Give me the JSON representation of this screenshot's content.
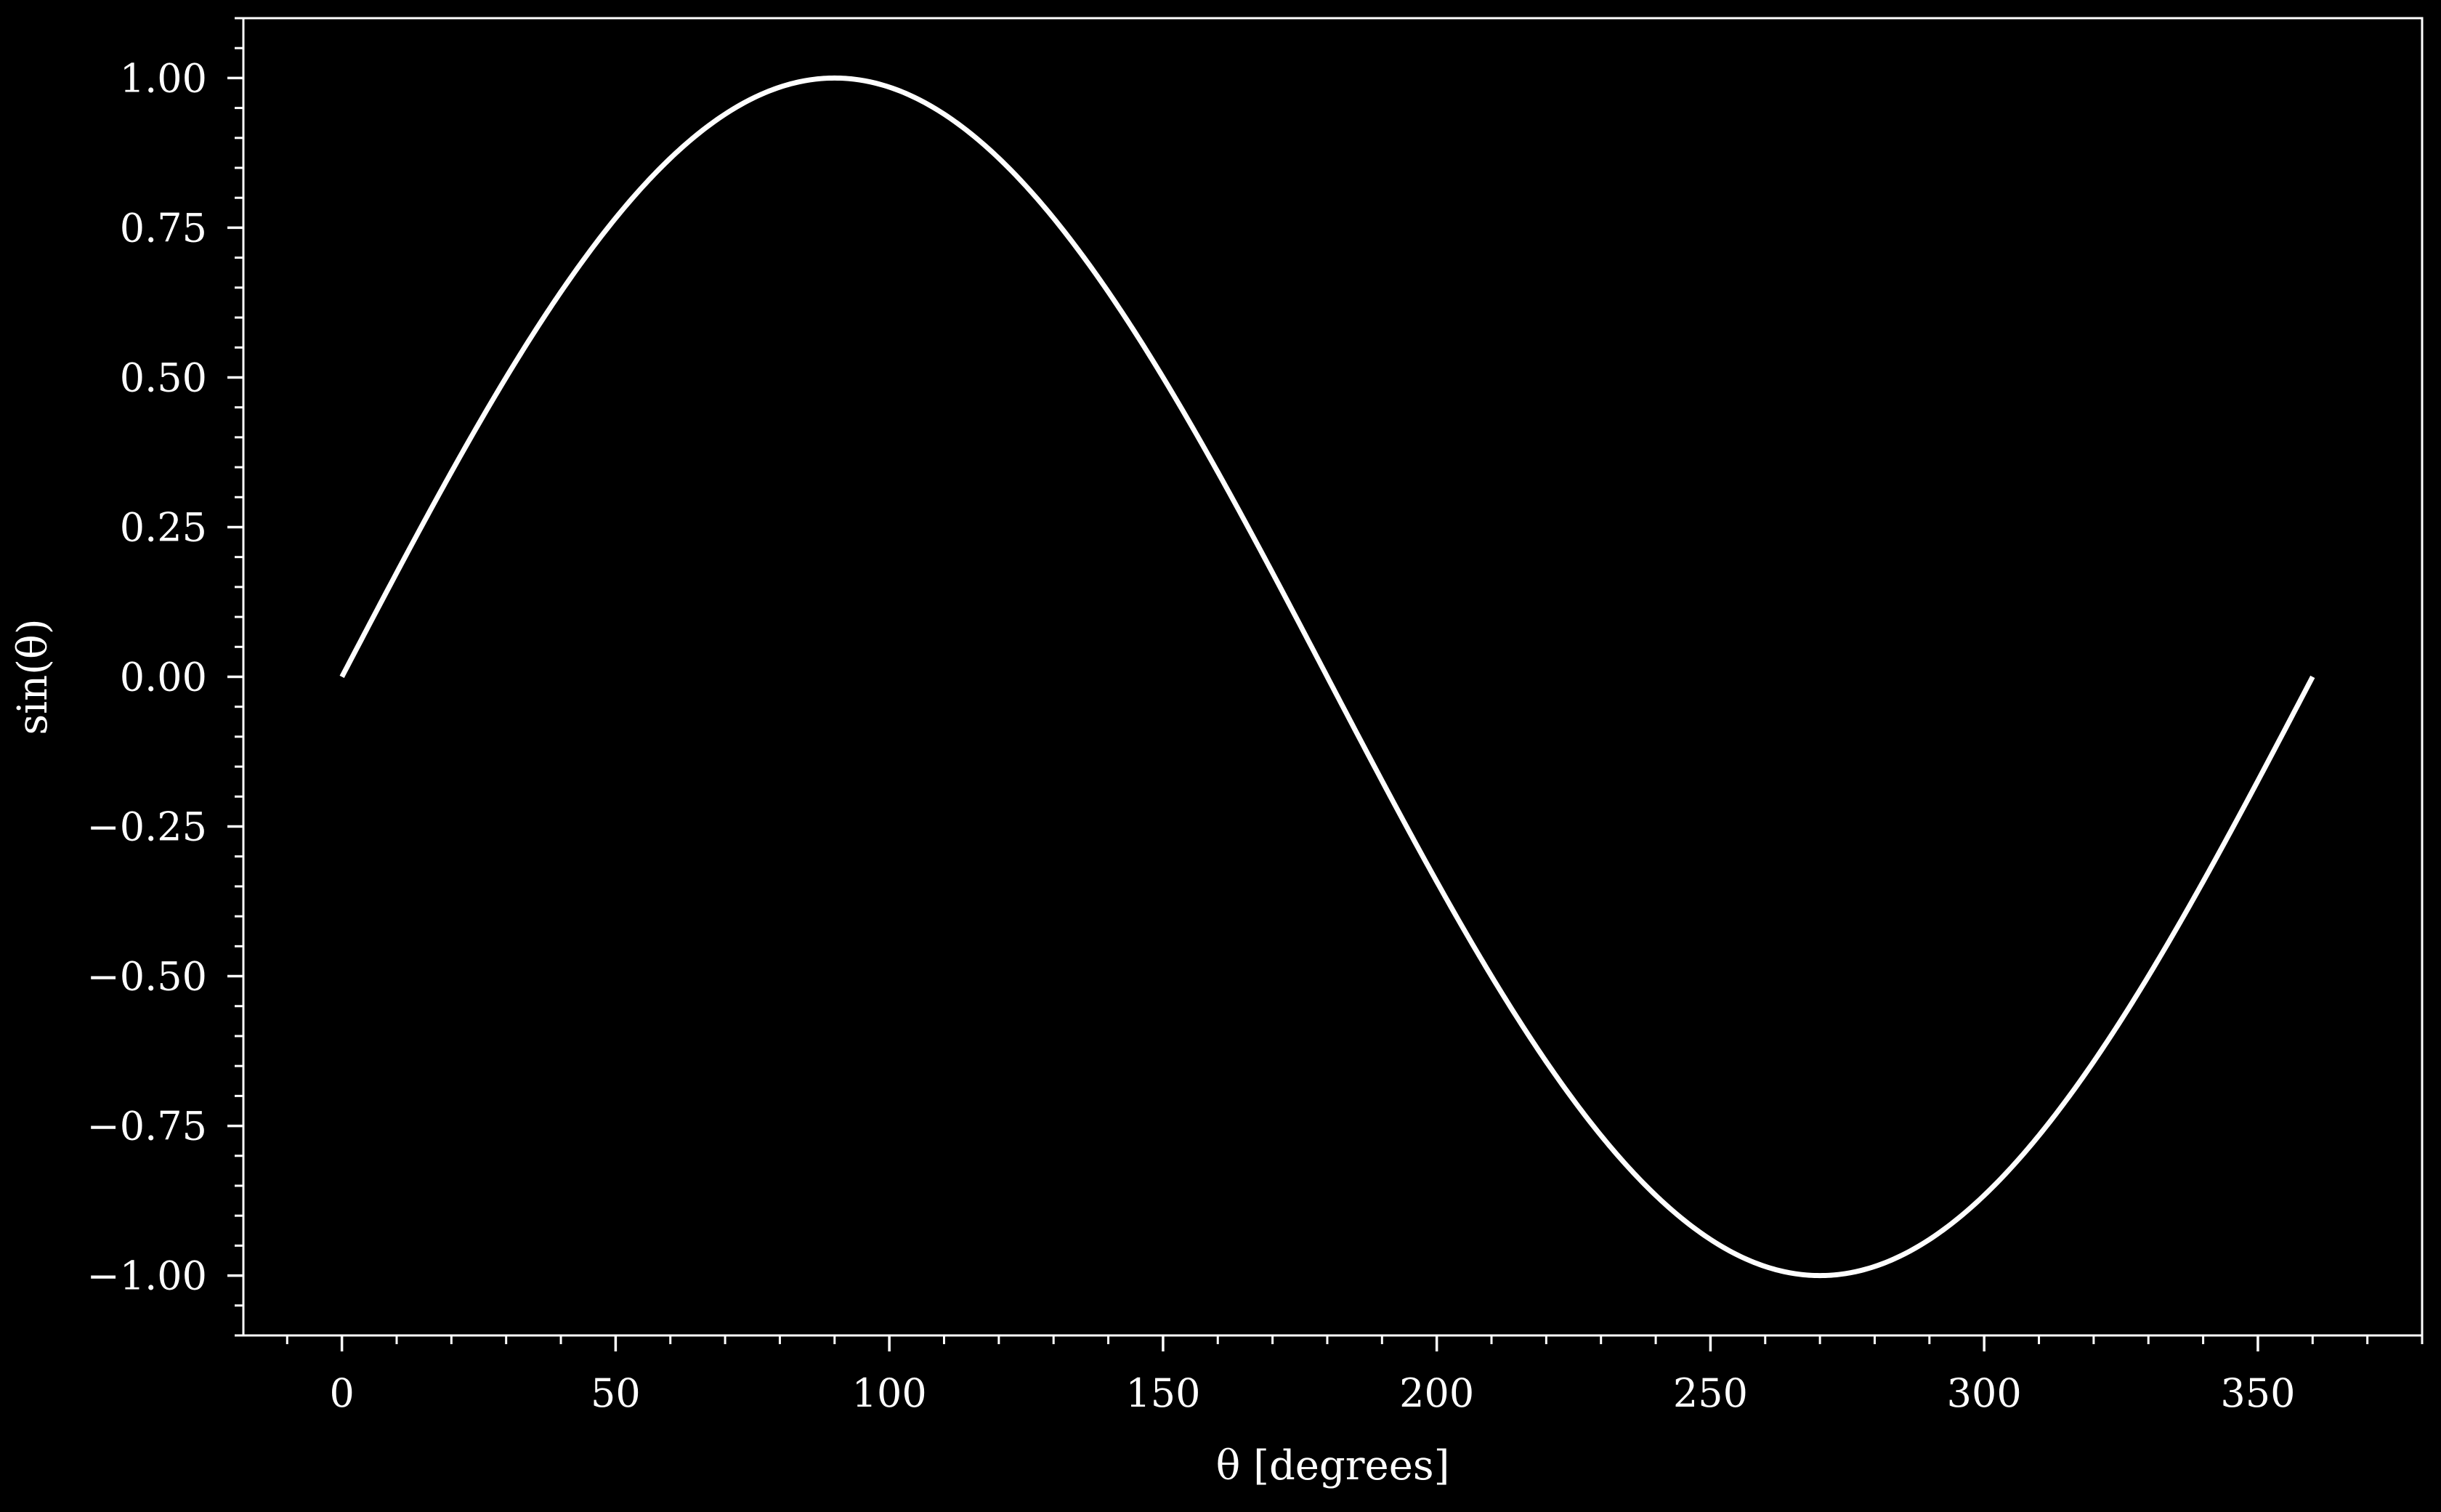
{
  "chart_data": {
    "type": "line",
    "title": "",
    "xlabel": "θ [degrees]",
    "ylabel": "sin(θ)",
    "xlim": [
      -18,
      380
    ],
    "ylim": [
      -1.1,
      1.1
    ],
    "xticks": [
      0,
      50,
      100,
      150,
      200,
      250,
      300,
      350
    ],
    "xtick_labels": [
      "0",
      "50",
      "100",
      "150",
      "200",
      "250",
      "300",
      "350"
    ],
    "xminor_step": 10,
    "yticks": [
      -1.0,
      -0.75,
      -0.5,
      -0.25,
      0.0,
      0.25,
      0.5,
      0.75,
      1.0
    ],
    "ytick_labels": [
      "−1.00",
      "−0.75",
      "−0.50",
      "−0.25",
      "0.00",
      "0.25",
      "0.50",
      "0.75",
      "1.00"
    ],
    "yminor_step": 0.05,
    "grid": false,
    "legend": "none",
    "series": [
      {
        "function": "sin(x degrees)",
        "x_range": [
          0,
          360
        ],
        "x": [
          0,
          30,
          60,
          90,
          120,
          150,
          180,
          210,
          240,
          270,
          300,
          330,
          360
        ],
        "y": [
          0.0,
          0.5,
          0.866,
          1.0,
          0.866,
          0.5,
          0.0,
          -0.5,
          -0.866,
          -1.0,
          -0.866,
          -0.5,
          0.0
        ]
      }
    ],
    "colors": {
      "background": "#000000",
      "line": "#ffffff",
      "axes": "#ffffff",
      "text": "#ffffff"
    }
  }
}
